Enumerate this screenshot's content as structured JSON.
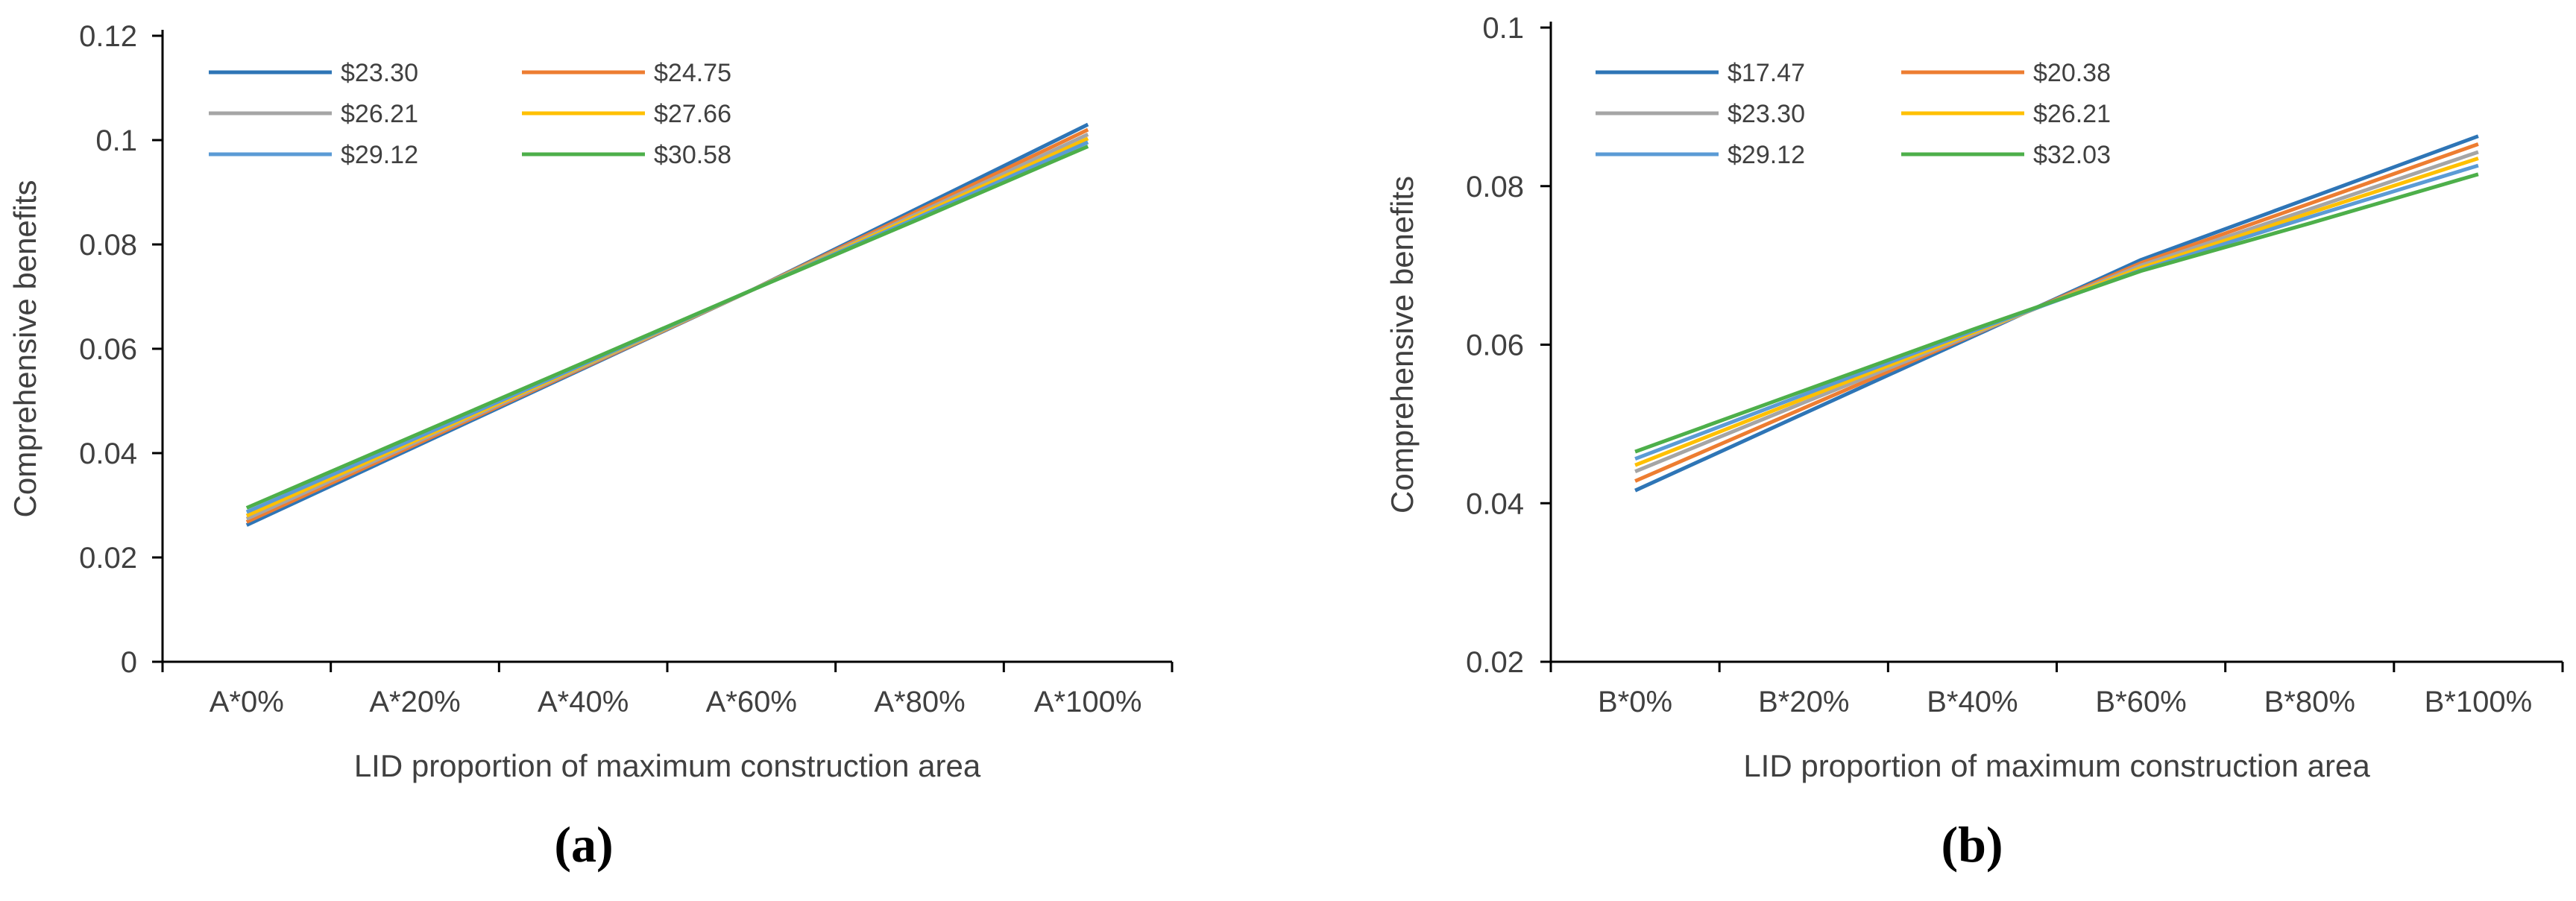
{
  "chart_data": [
    {
      "type": "line",
      "panel_label": "(a)",
      "xlabel": "LID proportion of maximum construction area",
      "ylabel": "Comprehensive benefits",
      "categories": [
        "A*0%",
        "A*20%",
        "A*40%",
        "A*60%",
        "A*80%",
        "A*100%"
      ],
      "ylim": [
        0,
        0.12
      ],
      "yticks": [
        0,
        0.02,
        0.04,
        0.06,
        0.08,
        0.1,
        0.12
      ],
      "ytick_labels": [
        "0",
        "0.02",
        "0.04",
        "0.06",
        "0.08",
        "0.1",
        "0.12"
      ],
      "legend_position": "top-left",
      "series": [
        {
          "name": "$23.30",
          "color": "#2e75b6",
          "values": [
            0.0262,
            0.0412,
            0.0562,
            0.0712,
            0.0871,
            0.103
          ]
        },
        {
          "name": "$24.75",
          "color": "#ed7d31",
          "values": [
            0.0268,
            0.0416,
            0.0564,
            0.0712,
            0.0866,
            0.102
          ]
        },
        {
          "name": "$26.21",
          "color": "#a5a5a5",
          "values": [
            0.0274,
            0.042,
            0.0566,
            0.0712,
            0.0861,
            0.1011
          ]
        },
        {
          "name": "$27.66",
          "color": "#ffc000",
          "values": [
            0.028,
            0.0424,
            0.0568,
            0.0712,
            0.0857,
            0.1003
          ]
        },
        {
          "name": "$29.12",
          "color": "#5b9bd5",
          "values": [
            0.0287,
            0.0428,
            0.057,
            0.0712,
            0.0853,
            0.0996
          ]
        },
        {
          "name": "$30.58",
          "color": "#4daf4a",
          "values": [
            0.0295,
            0.0434,
            0.0573,
            0.0712,
            0.0849,
            0.0988
          ]
        }
      ]
    },
    {
      "type": "line",
      "panel_label": "(b)",
      "xlabel": "LID proportion of maximum construction area",
      "ylabel": "Comprehensive benefits",
      "categories": [
        "B*0%",
        "B*20%",
        "B*40%",
        "B*60%",
        "B*80%",
        "B*100%"
      ],
      "ylim": [
        0.02,
        0.1
      ],
      "yticks": [
        0.02,
        0.04,
        0.06,
        0.08,
        0.1
      ],
      "ytick_labels": [
        "0.02",
        "0.04",
        "0.06",
        "0.08",
        "0.1"
      ],
      "legend_position": "top-left",
      "series": [
        {
          "name": "$17.47",
          "color": "#2e75b6",
          "values": [
            0.0416,
            0.0513,
            0.061,
            0.0707,
            0.0785,
            0.0863
          ]
        },
        {
          "name": "$20.38",
          "color": "#ed7d31",
          "values": [
            0.0428,
            0.052,
            0.0612,
            0.0703,
            0.0778,
            0.0853
          ]
        },
        {
          "name": "$23.30",
          "color": "#a5a5a5",
          "values": [
            0.044,
            0.0527,
            0.0613,
            0.07,
            0.0771,
            0.0843
          ]
        },
        {
          "name": "$26.21",
          "color": "#ffc000",
          "values": [
            0.0448,
            0.0532,
            0.0615,
            0.0697,
            0.0766,
            0.0835
          ]
        },
        {
          "name": "$29.12",
          "color": "#5b9bd5",
          "values": [
            0.0456,
            0.0537,
            0.0617,
            0.0694,
            0.0761,
            0.0826
          ]
        },
        {
          "name": "$32.03",
          "color": "#4daf4a",
          "values": [
            0.0465,
            0.0542,
            0.0619,
            0.0693,
            0.0753,
            0.0815
          ]
        }
      ]
    }
  ]
}
